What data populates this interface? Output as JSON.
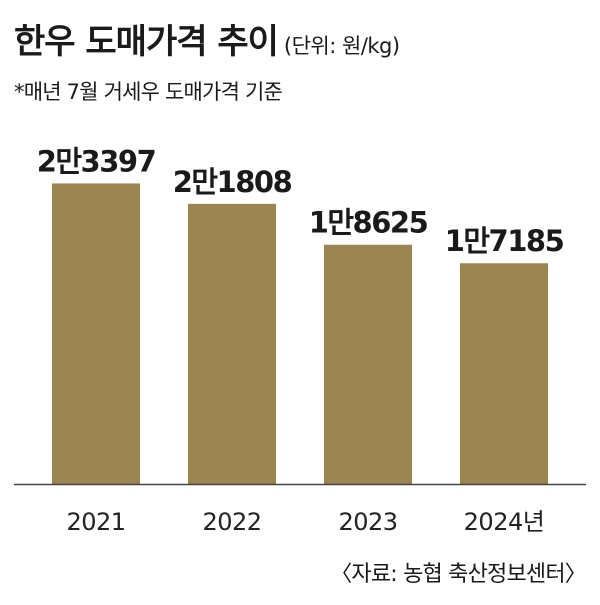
{
  "header": {
    "title": "한우 도매가격 추이",
    "unit": "(단위: 원/kg)",
    "note": "*매년 7월 거세우 도매가격 기준"
  },
  "source": "〈자료: 농협 축산정보센터〉",
  "colors": {
    "bar": "#9c8550",
    "axis": "#444444"
  },
  "chart_data": {
    "type": "bar",
    "title": "한우 도매가격 추이",
    "categories": [
      "2021",
      "2022",
      "2023",
      "2024년"
    ],
    "values": [
      23397,
      21808,
      18625,
      17185
    ],
    "value_labels": [
      "2만3397",
      "2만1808",
      "1만8625",
      "1만7185"
    ],
    "ylim": [
      0,
      26000
    ],
    "grid": false,
    "legend": "none"
  }
}
